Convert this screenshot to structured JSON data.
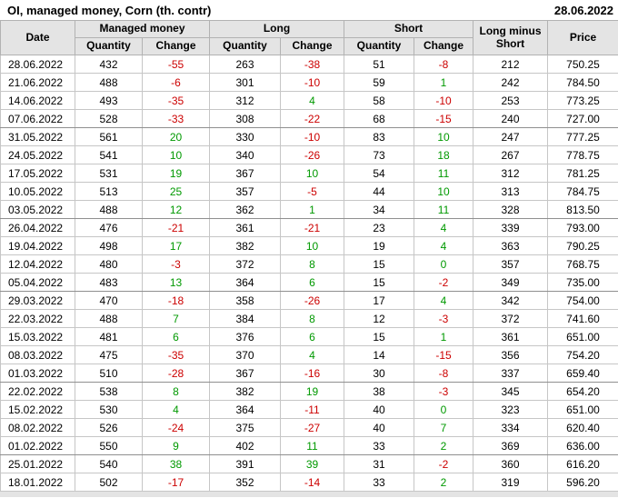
{
  "title": "OI, managed money, Corn (th. contr)",
  "report_date": "28.06.2022",
  "colors": {
    "negative": "#cc0000",
    "positive": "#009900",
    "header_bg": "#e4e4e4"
  },
  "table": {
    "headers": {
      "date": "Date",
      "managed_money": "Managed money",
      "long": "Long",
      "short": "Short",
      "long_minus_short": "Long minus Short",
      "price": "Price"
    },
    "subheaders": {
      "quantity": "Quantity",
      "change": "Change"
    },
    "rows": [
      {
        "date": "28.06.2022",
        "mm_qty": "432",
        "mm_chg": "-55",
        "long_qty": "263",
        "long_chg": "-38",
        "short_qty": "51",
        "short_chg": "-8",
        "long_minus_short": "212",
        "price": "750.25",
        "month_end": false
      },
      {
        "date": "21.06.2022",
        "mm_qty": "488",
        "mm_chg": "-6",
        "long_qty": "301",
        "long_chg": "-10",
        "short_qty": "59",
        "short_chg": "1",
        "long_minus_short": "242",
        "price": "784.50",
        "month_end": false
      },
      {
        "date": "14.06.2022",
        "mm_qty": "493",
        "mm_chg": "-35",
        "long_qty": "312",
        "long_chg": "4",
        "short_qty": "58",
        "short_chg": "-10",
        "long_minus_short": "253",
        "price": "773.25",
        "month_end": false
      },
      {
        "date": "07.06.2022",
        "mm_qty": "528",
        "mm_chg": "-33",
        "long_qty": "308",
        "long_chg": "-22",
        "short_qty": "68",
        "short_chg": "-15",
        "long_minus_short": "240",
        "price": "727.00",
        "month_end": true
      },
      {
        "date": "31.05.2022",
        "mm_qty": "561",
        "mm_chg": "20",
        "long_qty": "330",
        "long_chg": "-10",
        "short_qty": "83",
        "short_chg": "10",
        "long_minus_short": "247",
        "price": "777.25",
        "month_end": false
      },
      {
        "date": "24.05.2022",
        "mm_qty": "541",
        "mm_chg": "10",
        "long_qty": "340",
        "long_chg": "-26",
        "short_qty": "73",
        "short_chg": "18",
        "long_minus_short": "267",
        "price": "778.75",
        "month_end": false
      },
      {
        "date": "17.05.2022",
        "mm_qty": "531",
        "mm_chg": "19",
        "long_qty": "367",
        "long_chg": "10",
        "short_qty": "54",
        "short_chg": "11",
        "long_minus_short": "312",
        "price": "781.25",
        "month_end": false
      },
      {
        "date": "10.05.2022",
        "mm_qty": "513",
        "mm_chg": "25",
        "long_qty": "357",
        "long_chg": "-5",
        "short_qty": "44",
        "short_chg": "10",
        "long_minus_short": "313",
        "price": "784.75",
        "month_end": false
      },
      {
        "date": "03.05.2022",
        "mm_qty": "488",
        "mm_chg": "12",
        "long_qty": "362",
        "long_chg": "1",
        "short_qty": "34",
        "short_chg": "11",
        "long_minus_short": "328",
        "price": "813.50",
        "month_end": true
      },
      {
        "date": "26.04.2022",
        "mm_qty": "476",
        "mm_chg": "-21",
        "long_qty": "361",
        "long_chg": "-21",
        "short_qty": "23",
        "short_chg": "4",
        "long_minus_short": "339",
        "price": "793.00",
        "month_end": false
      },
      {
        "date": "19.04.2022",
        "mm_qty": "498",
        "mm_chg": "17",
        "long_qty": "382",
        "long_chg": "10",
        "short_qty": "19",
        "short_chg": "4",
        "long_minus_short": "363",
        "price": "790.25",
        "month_end": false
      },
      {
        "date": "12.04.2022",
        "mm_qty": "480",
        "mm_chg": "-3",
        "long_qty": "372",
        "long_chg": "8",
        "short_qty": "15",
        "short_chg": "0",
        "long_minus_short": "357",
        "price": "768.75",
        "month_end": false
      },
      {
        "date": "05.04.2022",
        "mm_qty": "483",
        "mm_chg": "13",
        "long_qty": "364",
        "long_chg": "6",
        "short_qty": "15",
        "short_chg": "-2",
        "long_minus_short": "349",
        "price": "735.00",
        "month_end": true
      },
      {
        "date": "29.03.2022",
        "mm_qty": "470",
        "mm_chg": "-18",
        "long_qty": "358",
        "long_chg": "-26",
        "short_qty": "17",
        "short_chg": "4",
        "long_minus_short": "342",
        "price": "754.00",
        "month_end": false
      },
      {
        "date": "22.03.2022",
        "mm_qty": "488",
        "mm_chg": "7",
        "long_qty": "384",
        "long_chg": "8",
        "short_qty": "12",
        "short_chg": "-3",
        "long_minus_short": "372",
        "price": "741.60",
        "month_end": false
      },
      {
        "date": "15.03.2022",
        "mm_qty": "481",
        "mm_chg": "6",
        "long_qty": "376",
        "long_chg": "6",
        "short_qty": "15",
        "short_chg": "1",
        "long_minus_short": "361",
        "price": "651.00",
        "month_end": false
      },
      {
        "date": "08.03.2022",
        "mm_qty": "475",
        "mm_chg": "-35",
        "long_qty": "370",
        "long_chg": "4",
        "short_qty": "14",
        "short_chg": "-15",
        "long_minus_short": "356",
        "price": "754.20",
        "month_end": false
      },
      {
        "date": "01.03.2022",
        "mm_qty": "510",
        "mm_chg": "-28",
        "long_qty": "367",
        "long_chg": "-16",
        "short_qty": "30",
        "short_chg": "-8",
        "long_minus_short": "337",
        "price": "659.40",
        "month_end": true
      },
      {
        "date": "22.02.2022",
        "mm_qty": "538",
        "mm_chg": "8",
        "long_qty": "382",
        "long_chg": "19",
        "short_qty": "38",
        "short_chg": "-3",
        "long_minus_short": "345",
        "price": "654.20",
        "month_end": false
      },
      {
        "date": "15.02.2022",
        "mm_qty": "530",
        "mm_chg": "4",
        "long_qty": "364",
        "long_chg": "-11",
        "short_qty": "40",
        "short_chg": "0",
        "long_minus_short": "323",
        "price": "651.00",
        "month_end": false
      },
      {
        "date": "08.02.2022",
        "mm_qty": "526",
        "mm_chg": "-24",
        "long_qty": "375",
        "long_chg": "-27",
        "short_qty": "40",
        "short_chg": "7",
        "long_minus_short": "334",
        "price": "620.40",
        "month_end": false
      },
      {
        "date": "01.02.2022",
        "mm_qty": "550",
        "mm_chg": "9",
        "long_qty": "402",
        "long_chg": "11",
        "short_qty": "33",
        "short_chg": "2",
        "long_minus_short": "369",
        "price": "636.00",
        "month_end": true
      },
      {
        "date": "25.01.2022",
        "mm_qty": "540",
        "mm_chg": "38",
        "long_qty": "391",
        "long_chg": "39",
        "short_qty": "31",
        "short_chg": "-2",
        "long_minus_short": "360",
        "price": "616.20",
        "month_end": false
      },
      {
        "date": "18.01.2022",
        "mm_qty": "502",
        "mm_chg": "-17",
        "long_qty": "352",
        "long_chg": "-14",
        "short_qty": "33",
        "short_chg": "2",
        "long_minus_short": "319",
        "price": "596.20",
        "month_end": false
      }
    ]
  }
}
